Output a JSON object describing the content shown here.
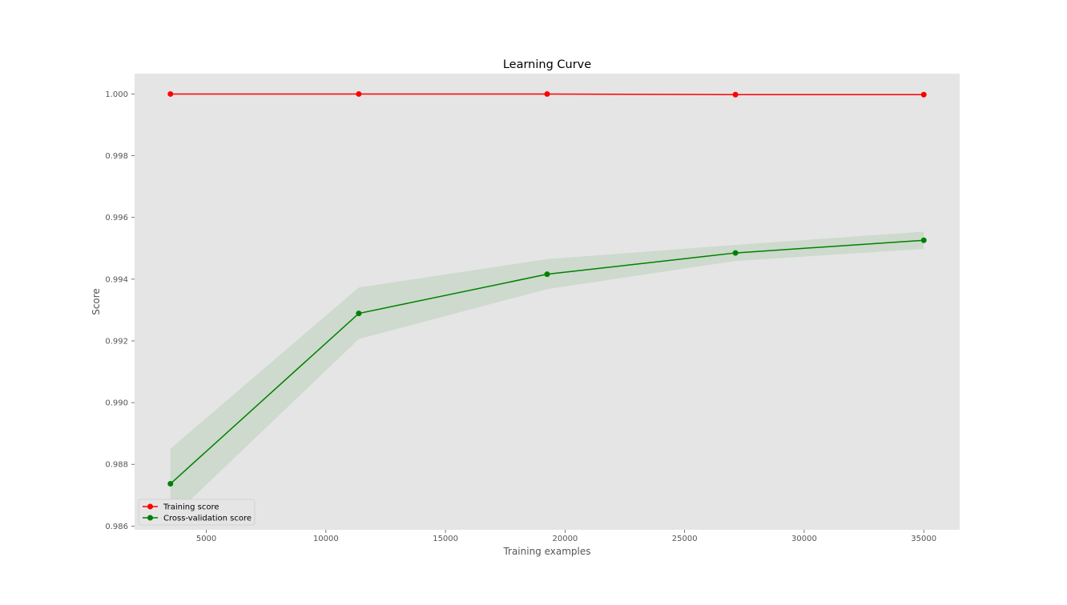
{
  "chart_data": {
    "type": "line",
    "title": "Learning Curve",
    "xlabel": "Training examples",
    "ylabel": "Score",
    "xlim": [
      2000,
      36500
    ],
    "ylim": [
      0.98588,
      1.00066
    ],
    "grid": false,
    "background": "#e5e5e5",
    "legend_position": "lower-left",
    "x": [
      3500,
      11375,
      19250,
      27125,
      35000
    ],
    "x_ticks": [
      5000,
      10000,
      15000,
      20000,
      25000,
      30000,
      35000
    ],
    "x_tick_labels": [
      "5000",
      "10000",
      "15000",
      "20000",
      "25000",
      "30000",
      "35000"
    ],
    "y_ticks": [
      0.986,
      0.988,
      0.99,
      0.992,
      0.994,
      0.996,
      0.998,
      1.0
    ],
    "y_tick_labels": [
      "0.986",
      "0.988",
      "0.990",
      "0.992",
      "0.994",
      "0.996",
      "0.998",
      "1.000"
    ],
    "series": [
      {
        "name": "Training score",
        "color": "#ff0000",
        "values": [
          1.0,
          1.0,
          1.0,
          0.99998,
          0.99998
        ],
        "band_lower": [
          1.0,
          1.0,
          1.0,
          0.99998,
          0.99998
        ],
        "band_upper": [
          1.0,
          1.0,
          1.0,
          0.99998,
          0.99998
        ],
        "band_color": "#ff0000"
      },
      {
        "name": "Cross-validation score",
        "color": "#008000",
        "values": [
          0.98737,
          0.99289,
          0.99416,
          0.99485,
          0.99526
        ],
        "band_lower": [
          0.98623,
          0.99206,
          0.99368,
          0.99459,
          0.99498
        ],
        "band_upper": [
          0.98851,
          0.99373,
          0.99465,
          0.99511,
          0.99554
        ],
        "band_color": "#008000"
      }
    ]
  }
}
